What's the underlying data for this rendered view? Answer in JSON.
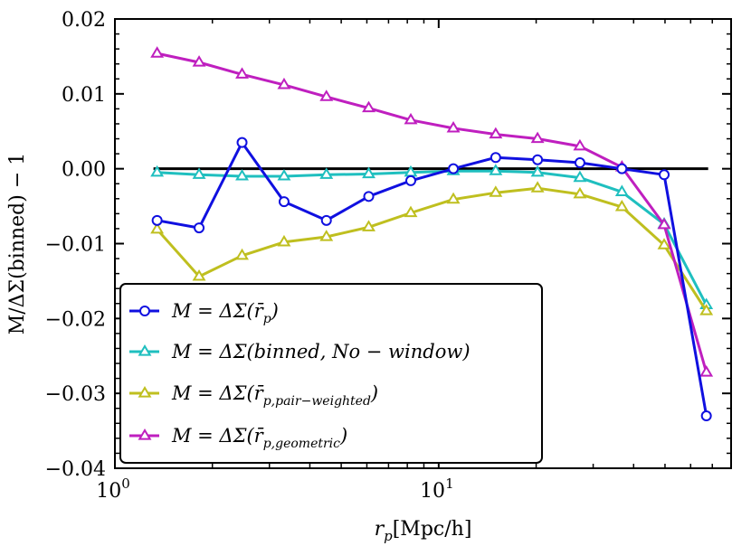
{
  "chart_data": {
    "type": "line",
    "xscale": "log",
    "xlim": [
      1.0,
      80.0
    ],
    "ylim": [
      -0.04,
      0.02
    ],
    "xlabel": "r_p[Mpc/h]",
    "ylabel": "M/ΔΣ(binned) − 1",
    "x_ticks": [
      {
        "value": 1,
        "label": "10",
        "exp": "0"
      },
      {
        "value": 10,
        "label": "10",
        "exp": "1"
      }
    ],
    "y_ticks": [
      {
        "value": 0.02,
        "label": "0.02"
      },
      {
        "value": 0.01,
        "label": "0.01"
      },
      {
        "value": 0.0,
        "label": "0.00"
      },
      {
        "value": -0.01,
        "label": "−0.01"
      },
      {
        "value": -0.02,
        "label": "−0.02"
      },
      {
        "value": -0.03,
        "label": "−0.03"
      },
      {
        "value": -0.04,
        "label": "−0.04"
      }
    ],
    "reference_line": {
      "y": 0.0,
      "color": "#000000"
    },
    "legend_location": "lower-left",
    "series": [
      {
        "name": "M = ΔΣ(r̄p)",
        "legend": {
          "prefix": "M = ΔΣ(",
          "main": "r̄",
          "sub": "p",
          "suffix": ")"
        },
        "color": "#1010e0",
        "marker": "circle",
        "x": [
          1.35,
          1.82,
          2.47,
          3.33,
          4.5,
          6.08,
          8.2,
          11.1,
          15.0,
          20.2,
          27.3,
          36.8,
          49.7,
          67.1
        ],
        "y": [
          -0.0069,
          -0.0079,
          0.0035,
          -0.0044,
          -0.0069,
          -0.0037,
          -0.0016,
          0.0,
          0.0015,
          0.0012,
          0.0008,
          0.0,
          -0.0008,
          -0.033
        ]
      },
      {
        "name": "M = ΔΣ(binned, No − window)",
        "legend": {
          "prefix": "M = ΔΣ(",
          "main": "binned, No − window",
          "sub": "",
          "suffix": ")"
        },
        "color": "#1fbfbf",
        "marker": "triangle",
        "x": [
          1.35,
          1.82,
          2.47,
          3.33,
          4.5,
          6.08,
          8.2,
          11.1,
          15.0,
          20.2,
          27.3,
          36.8,
          49.7,
          67.1
        ],
        "y": [
          -0.0005,
          -0.0008,
          -0.001,
          -0.001,
          -0.0008,
          -0.0007,
          -0.0005,
          -0.0003,
          -0.0003,
          -0.0005,
          -0.0012,
          -0.0031,
          -0.0074,
          -0.0182
        ]
      },
      {
        "name": "M = ΔΣ(r̄p,pair−weighted)",
        "legend": {
          "prefix": "M = ΔΣ(",
          "main": "r̄",
          "sub": "p,pair−weighted",
          "suffix": ")"
        },
        "color": "#bfbf1f",
        "marker": "triangle",
        "x": [
          1.35,
          1.82,
          2.47,
          3.33,
          4.5,
          6.08,
          8.2,
          11.1,
          15.0,
          20.2,
          27.3,
          36.8,
          49.7,
          67.1
        ],
        "y": [
          -0.0081,
          -0.0144,
          -0.0116,
          -0.0098,
          -0.0091,
          -0.0078,
          -0.0059,
          -0.0041,
          -0.0032,
          -0.0026,
          -0.0034,
          -0.0051,
          -0.0102,
          -0.019
        ]
      },
      {
        "name": "M = ΔΣ(r̄p,geometric)",
        "legend": {
          "prefix": "M = ΔΣ(",
          "main": "r̄",
          "sub": "p,geometric",
          "suffix": ")"
        },
        "color": "#bf1fbf",
        "marker": "triangle",
        "x": [
          1.35,
          1.82,
          2.47,
          3.33,
          4.5,
          6.08,
          8.2,
          11.1,
          15.0,
          20.2,
          27.3,
          36.8,
          49.7,
          67.1
        ],
        "y": [
          0.0154,
          0.0142,
          0.0126,
          0.0112,
          0.0096,
          0.0081,
          0.0065,
          0.0054,
          0.0046,
          0.004,
          0.003,
          0.0002,
          -0.0075,
          -0.0272
        ]
      }
    ]
  }
}
